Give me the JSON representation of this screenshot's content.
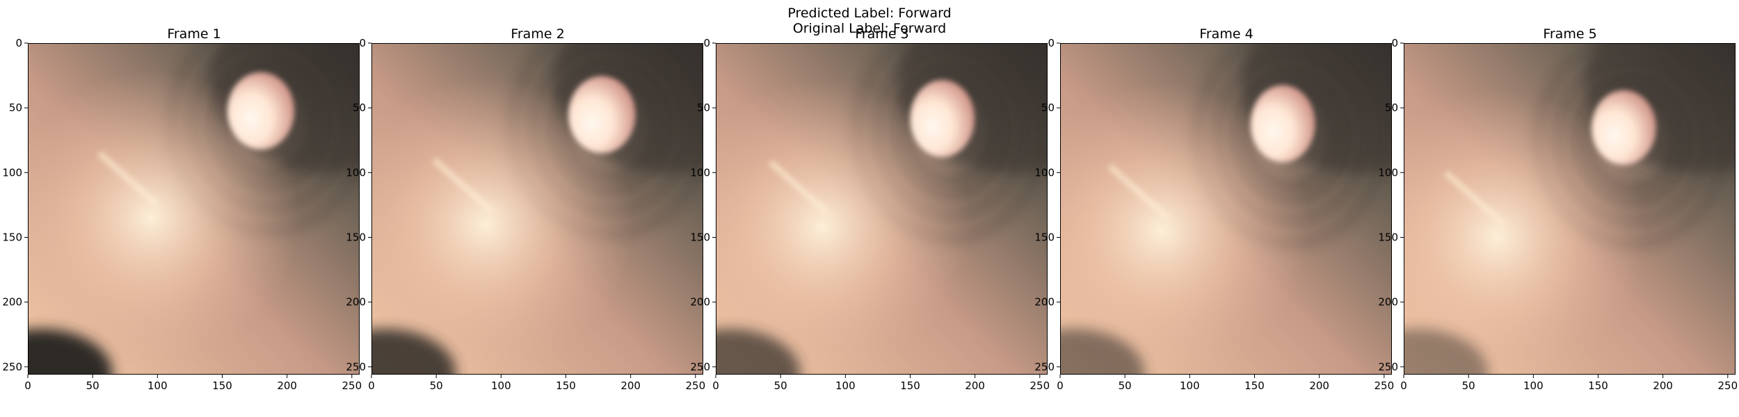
{
  "figure": {
    "predicted_label": "Predicted Label: Forward",
    "original_label": "Original Label: Forward"
  },
  "panels": [
    {
      "title": "Frame 1",
      "lumen": {
        "cx": 180,
        "cy": 52,
        "rx": 26,
        "ry": 30
      },
      "light": {
        "x": 95,
        "y": 135
      },
      "dark_corner": 1.0
    },
    {
      "title": "Frame 2",
      "lumen": {
        "cx": 178,
        "cy": 55,
        "rx": 26,
        "ry": 30
      },
      "light": {
        "x": 88,
        "y": 140
      },
      "dark_corner": 0.85
    },
    {
      "title": "Frame 3",
      "lumen": {
        "cx": 175,
        "cy": 58,
        "rx": 25,
        "ry": 30
      },
      "light": {
        "x": 82,
        "y": 142
      },
      "dark_corner": 0.7
    },
    {
      "title": "Frame 4",
      "lumen": {
        "cx": 172,
        "cy": 62,
        "rx": 25,
        "ry": 30
      },
      "light": {
        "x": 78,
        "y": 145
      },
      "dark_corner": 0.55
    },
    {
      "title": "Frame 5",
      "lumen": {
        "cx": 170,
        "cy": 65,
        "rx": 25,
        "ry": 29
      },
      "light": {
        "x": 72,
        "y": 150
      },
      "dark_corner": 0.45
    }
  ],
  "axes": {
    "x_ticks": [
      "0",
      "50",
      "100",
      "150",
      "200",
      "250"
    ],
    "y_ticks": [
      "0",
      "50",
      "100",
      "150",
      "200",
      "250"
    ],
    "xlim": [
      0,
      256
    ],
    "ylim": [
      256,
      0
    ]
  },
  "colors": {
    "tissue_light": "#f4c9a7",
    "tissue_mid": "#c69a86",
    "tissue_dark": "#6e6356",
    "lumen_glow": "#ffe6d4",
    "shadow": "#2f2c28"
  }
}
